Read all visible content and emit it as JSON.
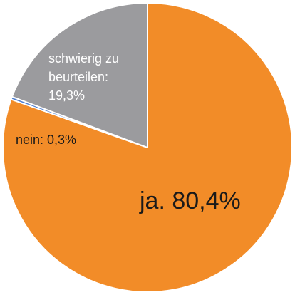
{
  "chart_data": {
    "type": "pie",
    "slices": [
      {
        "label": "ja.",
        "value": 80.4,
        "value_label": "80,4%",
        "color": "#f28c28"
      },
      {
        "label": "nein:",
        "value": 0.3,
        "value_label": "0,3%",
        "color": "#4f7fd1"
      },
      {
        "label": "schwierig zu beurteilen:",
        "value": 19.3,
        "value_label": "19,3%",
        "color": "#9b9b9e"
      }
    ]
  },
  "labels": {
    "ja": "ja. 80,4%",
    "nein": "nein: 0,3%",
    "schwierig_line1": "schwierig zu",
    "schwierig_line2": "beurteilen:",
    "schwierig_line3": "19,3%"
  }
}
